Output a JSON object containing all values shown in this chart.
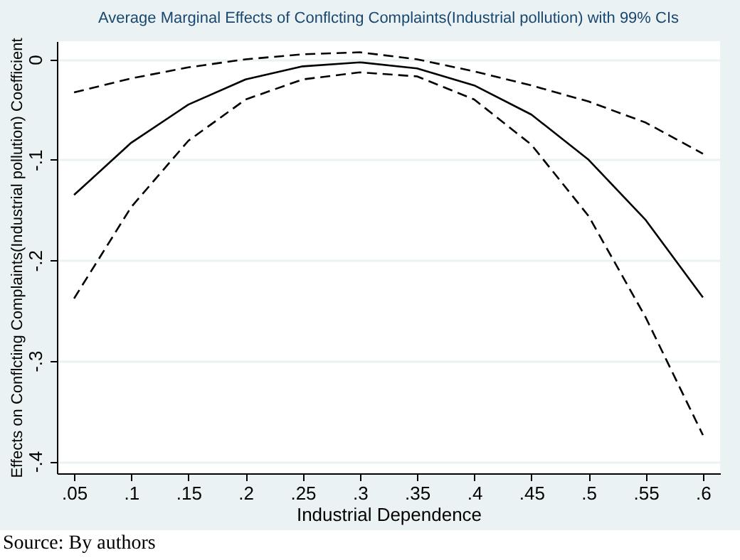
{
  "chart_data": {
    "type": "line",
    "title": "Average Marginal Effects of Conflcting Complaints(Industrial pollution) with 99% CIs",
    "xlabel": "Industrial Dependence",
    "ylabel": "Effects on Conflcting Complaints(Industrial pollution) Coefficient",
    "annotations": [
      "Source: By authors"
    ],
    "x": [
      0.05,
      0.1,
      0.15,
      0.2,
      0.25,
      0.3,
      0.35,
      0.4,
      0.45,
      0.5,
      0.55,
      0.6
    ],
    "series": [
      {
        "color": "#000000",
        "line_style": "solid",
        "values": [
          -0.135,
          -0.083,
          -0.045,
          -0.02,
          -0.007,
          -0.003,
          -0.009,
          -0.026,
          -0.055,
          -0.1,
          -0.16,
          -0.237
        ]
      },
      {
        "color": "#000000",
        "line_style": "dashed",
        "values": [
          -0.033,
          -0.019,
          -0.008,
          0.0,
          0.005,
          0.007,
          0.0,
          -0.012,
          -0.026,
          -0.042,
          -0.063,
          -0.094
        ]
      },
      {
        "color": "#000000",
        "line_style": "dashed",
        "values": [
          -0.238,
          -0.147,
          -0.081,
          -0.04,
          -0.02,
          -0.013,
          -0.017,
          -0.04,
          -0.085,
          -0.156,
          -0.257,
          -0.374
        ]
      }
    ],
    "xlim": [
      0.035,
      0.615
    ],
    "ylim": [
      -0.412,
      0.018
    ],
    "xticks": [
      {
        "value": 0.05,
        "label": ".05"
      },
      {
        "value": 0.1,
        "label": ".1"
      },
      {
        "value": 0.15,
        "label": ".15"
      },
      {
        "value": 0.2,
        "label": ".2"
      },
      {
        "value": 0.25,
        "label": ".25"
      },
      {
        "value": 0.3,
        "label": ".3"
      },
      {
        "value": 0.35,
        "label": ".35"
      },
      {
        "value": 0.4,
        "label": ".4"
      },
      {
        "value": 0.45,
        "label": ".45"
      },
      {
        "value": 0.5,
        "label": ".5"
      },
      {
        "value": 0.55,
        "label": ".55"
      },
      {
        "value": 0.6,
        "label": ".6"
      }
    ],
    "yticks": [
      {
        "value": -0.4,
        "label": "-.4"
      },
      {
        "value": -0.3,
        "label": "-.3"
      },
      {
        "value": -0.2,
        "label": "-.2"
      },
      {
        "value": -0.1,
        "label": "-.1"
      },
      0
    ],
    "grid": "y",
    "marker": "none"
  }
}
